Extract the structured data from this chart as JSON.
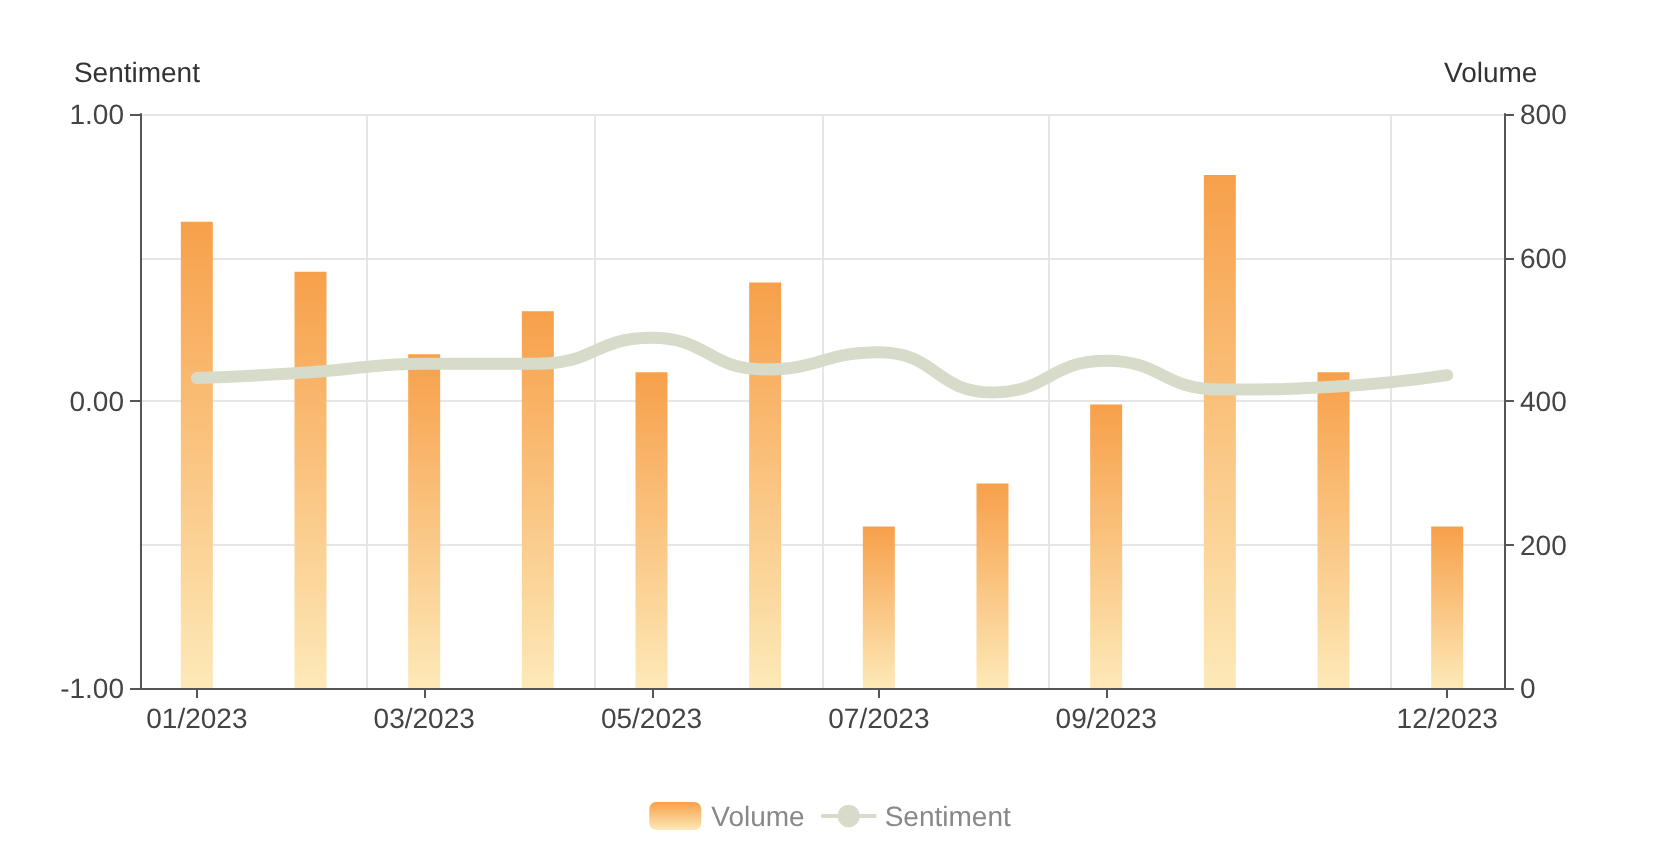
{
  "chart_data": {
    "type": "bar",
    "categories": [
      "01/2023",
      null,
      "03/2023",
      null,
      "05/2023",
      null,
      "07/2023",
      null,
      "09/2023",
      null,
      null,
      "12/2023"
    ],
    "series": [
      {
        "name": "Volume",
        "axis": "y2",
        "color": "#f7a04a",
        "values": [
          650,
          580,
          465,
          525,
          440,
          565,
          225,
          285,
          395,
          715,
          440,
          225
        ]
      },
      {
        "name": "Sentiment",
        "type": "line",
        "color": "#d6dcc9",
        "values": [
          0.08,
          0.1,
          0.13,
          0.13,
          0.22,
          0.11,
          0.17,
          0.03,
          0.14,
          0.04,
          0.05,
          0.09
        ]
      }
    ],
    "ylabel": "Sentiment",
    "y2label": "Volume",
    "ylim": [
      -1,
      1
    ],
    "yticks": [
      {
        "value": -1,
        "label": "-1.00"
      },
      {
        "value": 0,
        "label": "0.00"
      },
      {
        "value": 1,
        "label": "1.00"
      }
    ],
    "y2lim": [
      0,
      800
    ],
    "y2ticks": [
      0,
      200,
      400,
      600,
      800
    ],
    "grid": true,
    "legend": "bottom",
    "marker": "none",
    "line_style": "solid"
  }
}
